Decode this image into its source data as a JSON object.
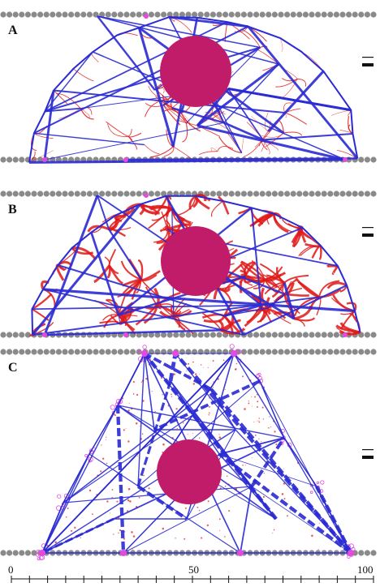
{
  "panels": [
    {
      "label": "A",
      "wall_top_tilted": false,
      "shape": "dome",
      "network_dense": false
    },
    {
      "label": "B",
      "wall_top_tilted": false,
      "shape": "dome",
      "network_dense": true
    },
    {
      "label": "C",
      "wall_top_tilted": false,
      "shape": "trapezoid",
      "network_dense": false
    }
  ],
  "scale_axis": {
    "min": 0,
    "max": 100,
    "tick_labels": [
      "0",
      "50",
      "100"
    ],
    "minor_ticks": 20
  },
  "colors": {
    "wall_bead": "#8a8a8a",
    "nucleus": "#c01c6a",
    "strong_fiber": "#2b2bd4",
    "weak_fiber": "#e01818",
    "anchor": "#e34be0",
    "legend_bar": "#111111"
  }
}
